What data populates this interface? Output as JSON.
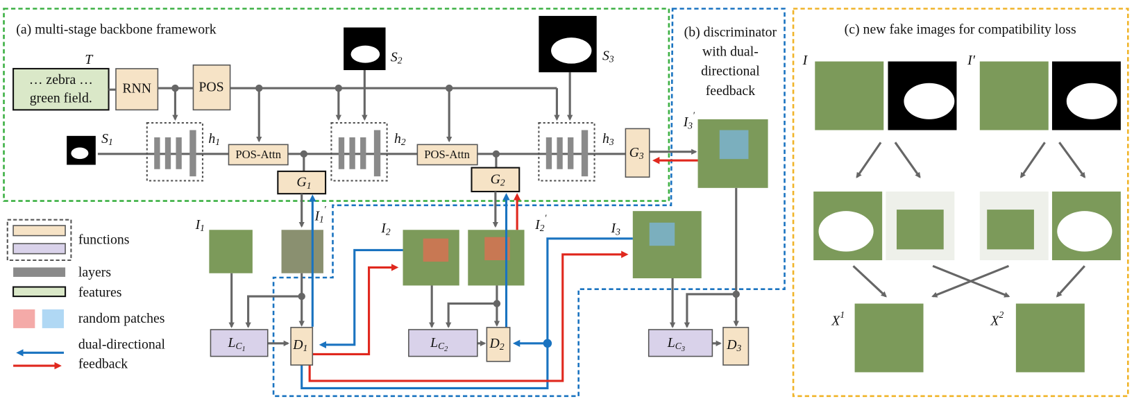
{
  "panel_a": {
    "title": "(a) multi-stage backbone framework"
  },
  "panel_b": {
    "title_lines": [
      "(b) discriminator",
      "with dual-",
      "directional",
      "feedback"
    ]
  },
  "panel_c": {
    "title": "(c) new fake images for compatibility loss"
  },
  "text_input": {
    "label": "T",
    "lines": [
      "… zebra …",
      "green field."
    ]
  },
  "blocks": {
    "rnn": "RNN",
    "pos": "POS",
    "pos_attn_1": "POS-Attn",
    "pos_attn_2": "POS-Attn"
  },
  "generators": [
    {
      "base": "G",
      "sub": "1"
    },
    {
      "base": "G",
      "sub": "2"
    },
    {
      "base": "G",
      "sub": "3"
    }
  ],
  "hidden": [
    {
      "base": "h",
      "sub": "1"
    },
    {
      "base": "h",
      "sub": "2"
    },
    {
      "base": "h",
      "sub": "3"
    }
  ],
  "shapes": [
    {
      "base": "S",
      "sub": "1"
    },
    {
      "base": "S",
      "sub": "2"
    },
    {
      "base": "S",
      "sub": "3"
    }
  ],
  "images": [
    {
      "base": "I",
      "sub": "1"
    },
    {
      "base": "I",
      "sub": "2"
    },
    {
      "base": "I",
      "sub": "3"
    }
  ],
  "feedback_images": [
    {
      "base": "I",
      "sub": "1",
      "sup": "′"
    },
    {
      "base": "I",
      "sub": "2",
      "sup": "′"
    },
    {
      "base": "I",
      "sub": "3",
      "sup": "′"
    }
  ],
  "losses": [
    {
      "base": "L",
      "sub": "C",
      "subsub": "1"
    },
    {
      "base": "L",
      "sub": "C",
      "subsub": "2"
    },
    {
      "base": "L",
      "sub": "C",
      "subsub": "3"
    }
  ],
  "discriminators": [
    {
      "base": "D",
      "sub": "1"
    },
    {
      "base": "D",
      "sub": "2"
    },
    {
      "base": "D",
      "sub": "3"
    }
  ],
  "fake": {
    "real": "I",
    "other": "I′",
    "outputs": [
      {
        "base": "X",
        "sup": "1"
      },
      {
        "base": "X",
        "sup": "2"
      }
    ]
  },
  "legend": {
    "functions": "functions",
    "layers": "layers",
    "features": "features",
    "random_patches": "random patches",
    "feedback_lines": [
      "dual-directional",
      "feedback"
    ]
  }
}
